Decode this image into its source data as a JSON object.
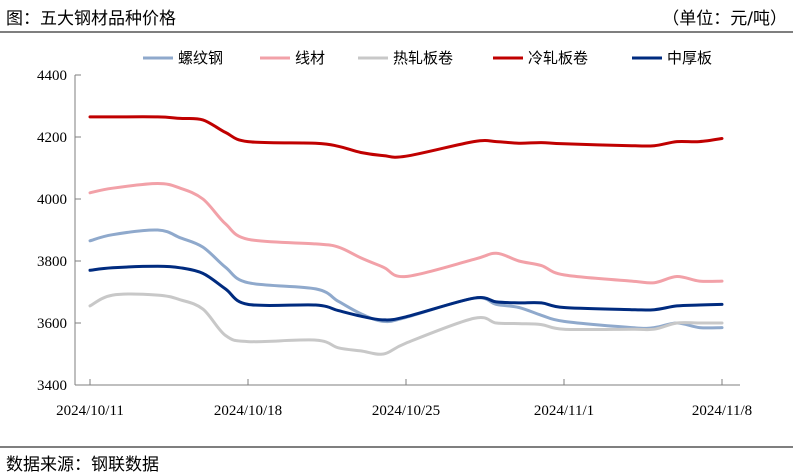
{
  "header": {
    "title": "图：五大钢材品种价格",
    "unit": "（单位：元/吨）"
  },
  "footer": {
    "source": "数据来源：钢联数据"
  },
  "chart_data": {
    "type": "line",
    "title": "",
    "xlabel": "",
    "ylabel": "",
    "ylim": [
      3400,
      4400
    ],
    "yticks": [
      3400,
      3600,
      3800,
      4000,
      4200,
      4400
    ],
    "xlim": [
      "2024-10-11",
      "2024-11-08"
    ],
    "xticks": [
      {
        "date": "2024-10-11",
        "label": "2024/10/11"
      },
      {
        "date": "2024-10-18",
        "label": "2024/10/18"
      },
      {
        "date": "2024-10-25",
        "label": "2024/10/25"
      },
      {
        "date": "2024-11-01",
        "label": "2024/11/1"
      },
      {
        "date": "2024-11-08",
        "label": "2024/11/8"
      }
    ],
    "grid": false,
    "legend_position": "top",
    "x": [
      "2024-10-11",
      "2024-10-12",
      "2024-10-14",
      "2024-10-15",
      "2024-10-16",
      "2024-10-17",
      "2024-10-18",
      "2024-10-21",
      "2024-10-22",
      "2024-10-23",
      "2024-10-24",
      "2024-10-25",
      "2024-10-28",
      "2024-10-29",
      "2024-10-30",
      "2024-10-31",
      "2024-11-01",
      "2024-11-04",
      "2024-11-05",
      "2024-11-06",
      "2024-11-07",
      "2024-11-08"
    ],
    "series": [
      {
        "name": "螺纹钢",
        "color": "#8fa9cc",
        "values": [
          3865,
          3885,
          3900,
          3875,
          3845,
          3780,
          3730,
          3710,
          3670,
          3630,
          3605,
          3618,
          3680,
          3660,
          3650,
          3625,
          3605,
          3585,
          3585,
          3600,
          3585,
          3585
        ]
      },
      {
        "name": "线材",
        "color": "#f2a1a8",
        "values": [
          4020,
          4035,
          4050,
          4035,
          4000,
          3920,
          3870,
          3855,
          3845,
          3810,
          3780,
          3750,
          3805,
          3825,
          3800,
          3785,
          3755,
          3735,
          3730,
          3750,
          3735,
          3735
        ]
      },
      {
        "name": "热轧板卷",
        "color": "#c8c8c8",
        "values": [
          3655,
          3690,
          3690,
          3675,
          3645,
          3560,
          3540,
          3545,
          3520,
          3510,
          3500,
          3535,
          3615,
          3600,
          3598,
          3595,
          3580,
          3580,
          3580,
          3600,
          3600,
          3600
        ]
      },
      {
        "name": "冷轧板卷",
        "color": "#c00000",
        "values": [
          4265,
          4265,
          4265,
          4260,
          4255,
          4215,
          4185,
          4180,
          4170,
          4150,
          4140,
          4138,
          4185,
          4185,
          4180,
          4182,
          4178,
          4172,
          4172,
          4185,
          4185,
          4195
        ]
      },
      {
        "name": "中厚板",
        "color": "#002b7f",
        "values": [
          3770,
          3778,
          3783,
          3778,
          3760,
          3710,
          3660,
          3658,
          3640,
          3622,
          3610,
          3620,
          3680,
          3668,
          3665,
          3665,
          3650,
          3643,
          3643,
          3655,
          3658,
          3660
        ]
      }
    ]
  }
}
